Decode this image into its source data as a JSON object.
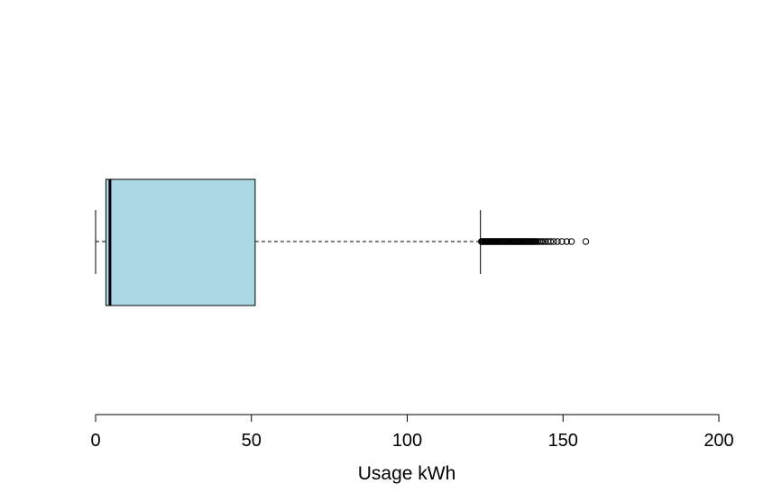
{
  "chart_data": {
    "type": "boxplot",
    "orientation": "horizontal",
    "title": "",
    "xlabel": "Usage kWh",
    "ylabel": "",
    "xlim": [
      0,
      200
    ],
    "xticks": [
      0,
      50,
      100,
      150,
      200
    ],
    "tick_labels": [
      "0",
      "50",
      "100",
      "150",
      "200"
    ],
    "grid": false,
    "box_color": "#add8e6",
    "line_color": "#000000",
    "stats": {
      "whisker_low": 0,
      "q1": 3.3,
      "median": 4.6,
      "q3": 51.2,
      "whisker_high": 123.5
    },
    "outliers": [
      123.8,
      124.0,
      124.3,
      124.6,
      124.9,
      125.2,
      125.5,
      125.8,
      126.1,
      126.4,
      126.7,
      127.0,
      127.3,
      127.6,
      127.9,
      128.2,
      128.5,
      128.8,
      129.1,
      129.4,
      129.7,
      130.0,
      130.3,
      130.6,
      130.9,
      131.2,
      131.5,
      131.8,
      132.1,
      132.4,
      132.7,
      133.0,
      133.3,
      133.6,
      133.9,
      134.2,
      134.5,
      134.8,
      135.1,
      135.4,
      135.7,
      136.0,
      136.3,
      136.6,
      136.9,
      137.2,
      137.5,
      137.8,
      138.1,
      138.4,
      138.7,
      139.0,
      139.3,
      139.6,
      139.9,
      140.2,
      140.5,
      140.8,
      141.1,
      141.5,
      142.0,
      142.6,
      143.1,
      143.8,
      144.4,
      145.2,
      146.0,
      147.0,
      148.2,
      149.6,
      151.2,
      152.7,
      157.3
    ]
  }
}
